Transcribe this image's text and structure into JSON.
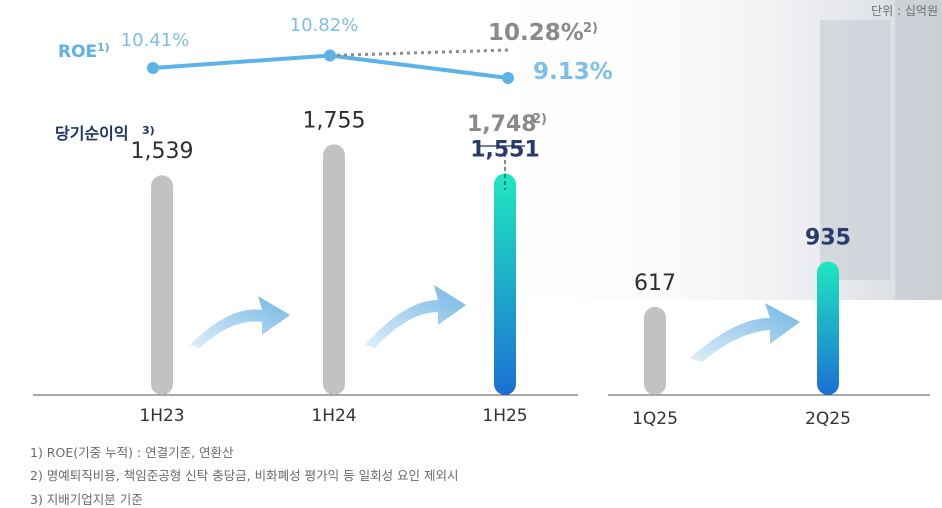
{
  "unit_label": "단위 : 십억원",
  "chart_data": {
    "type": "bar",
    "title": "",
    "ylabel": "",
    "xlabel": "",
    "bar_series_label": "당기순이익",
    "bar_series_sup": "3)",
    "line_series_label": "ROE",
    "line_series_sup": "1)",
    "categories": [
      "1H23",
      "1H24",
      "1H25",
      "1Q25",
      "2Q25"
    ],
    "values": [
      1539,
      1755,
      1551,
      617,
      935
    ],
    "value_labels": [
      "1,539",
      "1,755",
      "1,551",
      "617",
      "935"
    ],
    "adjusted": {
      "category": "1H25",
      "value": 1748,
      "label": "1,748",
      "sup": "2)"
    },
    "ylim": [
      0,
      2000
    ],
    "roe": {
      "categories": [
        "1H23",
        "1H24",
        "1H25"
      ],
      "values": [
        10.41,
        10.82,
        9.13
      ],
      "labels": [
        "10.41%",
        "10.82%",
        "9.13%"
      ],
      "adjusted_value": 10.28,
      "adjusted_label": "10.28%",
      "adjusted_sup": "2)"
    },
    "highlight_categories": [
      "1H25",
      "2Q25"
    ],
    "colors": {
      "bar_gray": "#c2c2c2",
      "bar_grad_top": "#1fe8c0",
      "bar_grad_bottom": "#1c6fd3",
      "roe_line": "#5db3e6",
      "roe_label": "#7cc0ea",
      "adjusted_gray": "#8a8a8a",
      "highlight_label": "#2a3c6e",
      "bar_series_label": "#1f3366",
      "axis": "#555555"
    }
  },
  "footnotes": [
    "1) ROE(기중 누적) :  연결기준, 연환산",
    "2) 명예퇴직비용, 책임준공형 신탁 충당금, 비화폐성 평가익 등 일회성 요인 제외시",
    "3) 지배기업지분 기준"
  ]
}
